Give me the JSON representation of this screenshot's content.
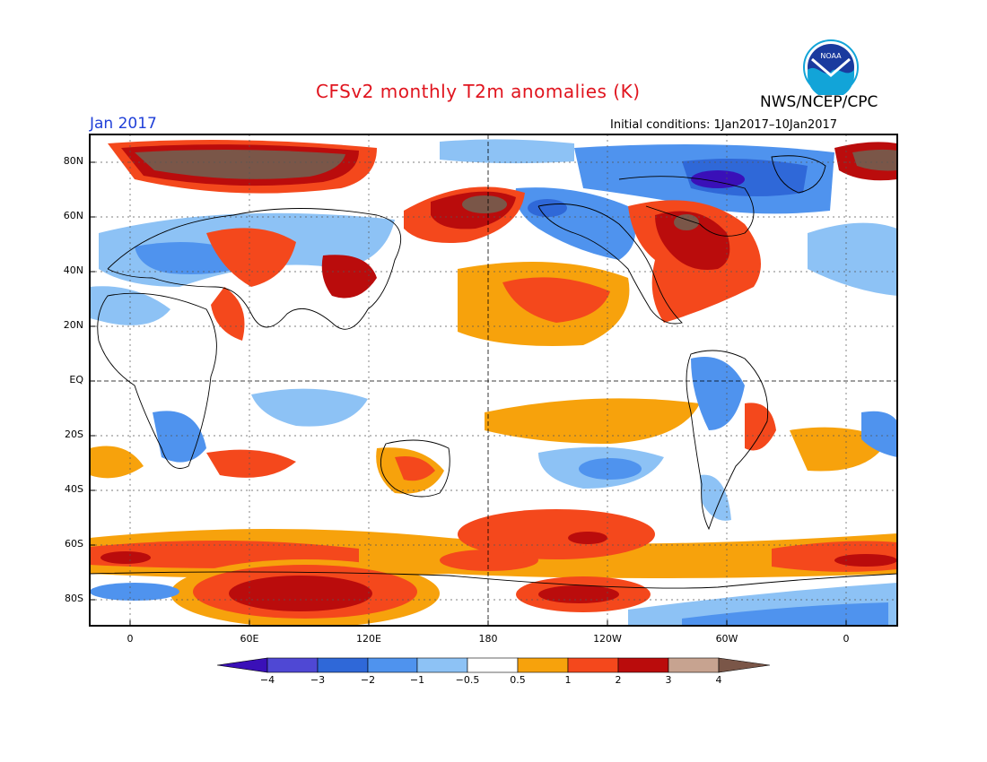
{
  "title": "CFSv2 monthly T2m anomalies (K)",
  "agency": "NWS/NCEP/CPC",
  "logo_text": "NOAA",
  "month": "Jan 2017",
  "initial_conditions": "Initial conditions: 1Jan2017–10Jan2017",
  "lat_ticks": [
    "80N",
    "60N",
    "40N",
    "20N",
    "EQ",
    "20S",
    "40S",
    "60S",
    "80S"
  ],
  "lon_ticks": [
    "0",
    "60E",
    "120E",
    "180",
    "120W",
    "60W",
    "0"
  ],
  "colorbar": {
    "labels": [
      "−4",
      "−3",
      "−2",
      "−1",
      "−0.5",
      "0.5",
      "1",
      "2",
      "3",
      "4"
    ],
    "colors": [
      "#3a10b8",
      "#4f48d4",
      "#2f68d8",
      "#4f93ee",
      "#8dc2f5",
      "#ffffff",
      "#f7a20c",
      "#f4481c",
      "#ba0c0c",
      "#c7a390",
      "#7a5648"
    ]
  }
}
